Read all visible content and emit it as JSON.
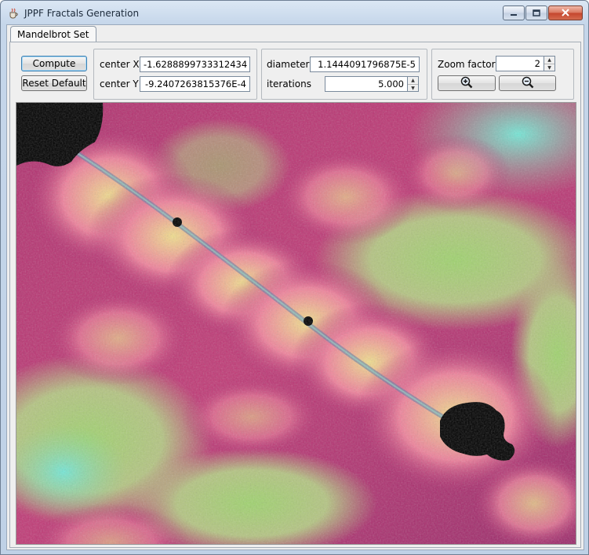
{
  "window": {
    "title": "JPPF Fractals Generation",
    "minimize_icon": "minimize-icon",
    "maximize_icon": "maximize-icon",
    "close_icon": "close-icon"
  },
  "tabs": [
    {
      "label": "Mandelbrot Set",
      "selected": true
    }
  ],
  "controls": {
    "compute_label": "Compute",
    "reset_label": "Reset Default",
    "center_x_label": "center X",
    "center_x_value": "-1.6288899733312434",
    "center_y_label": "center Y",
    "center_y_value": "-9.2407263815376E-4",
    "diameter_label": "diameter",
    "diameter_value": "1.1444091796875E-5",
    "iterations_label": "iterations",
    "iterations_value": "5.000",
    "zoom_factor_label": "Zoom factor",
    "zoom_factor_value": "2",
    "zoom_in_icon": "zoom-in-icon",
    "zoom_out_icon": "zoom-out-icon"
  },
  "colors": {
    "magenta": "#a8256e",
    "pink": "#f58aa0",
    "yellow": "#f6f090",
    "green": "#8fcf6a",
    "cyan": "#6fe0d2",
    "set": "#000000"
  }
}
